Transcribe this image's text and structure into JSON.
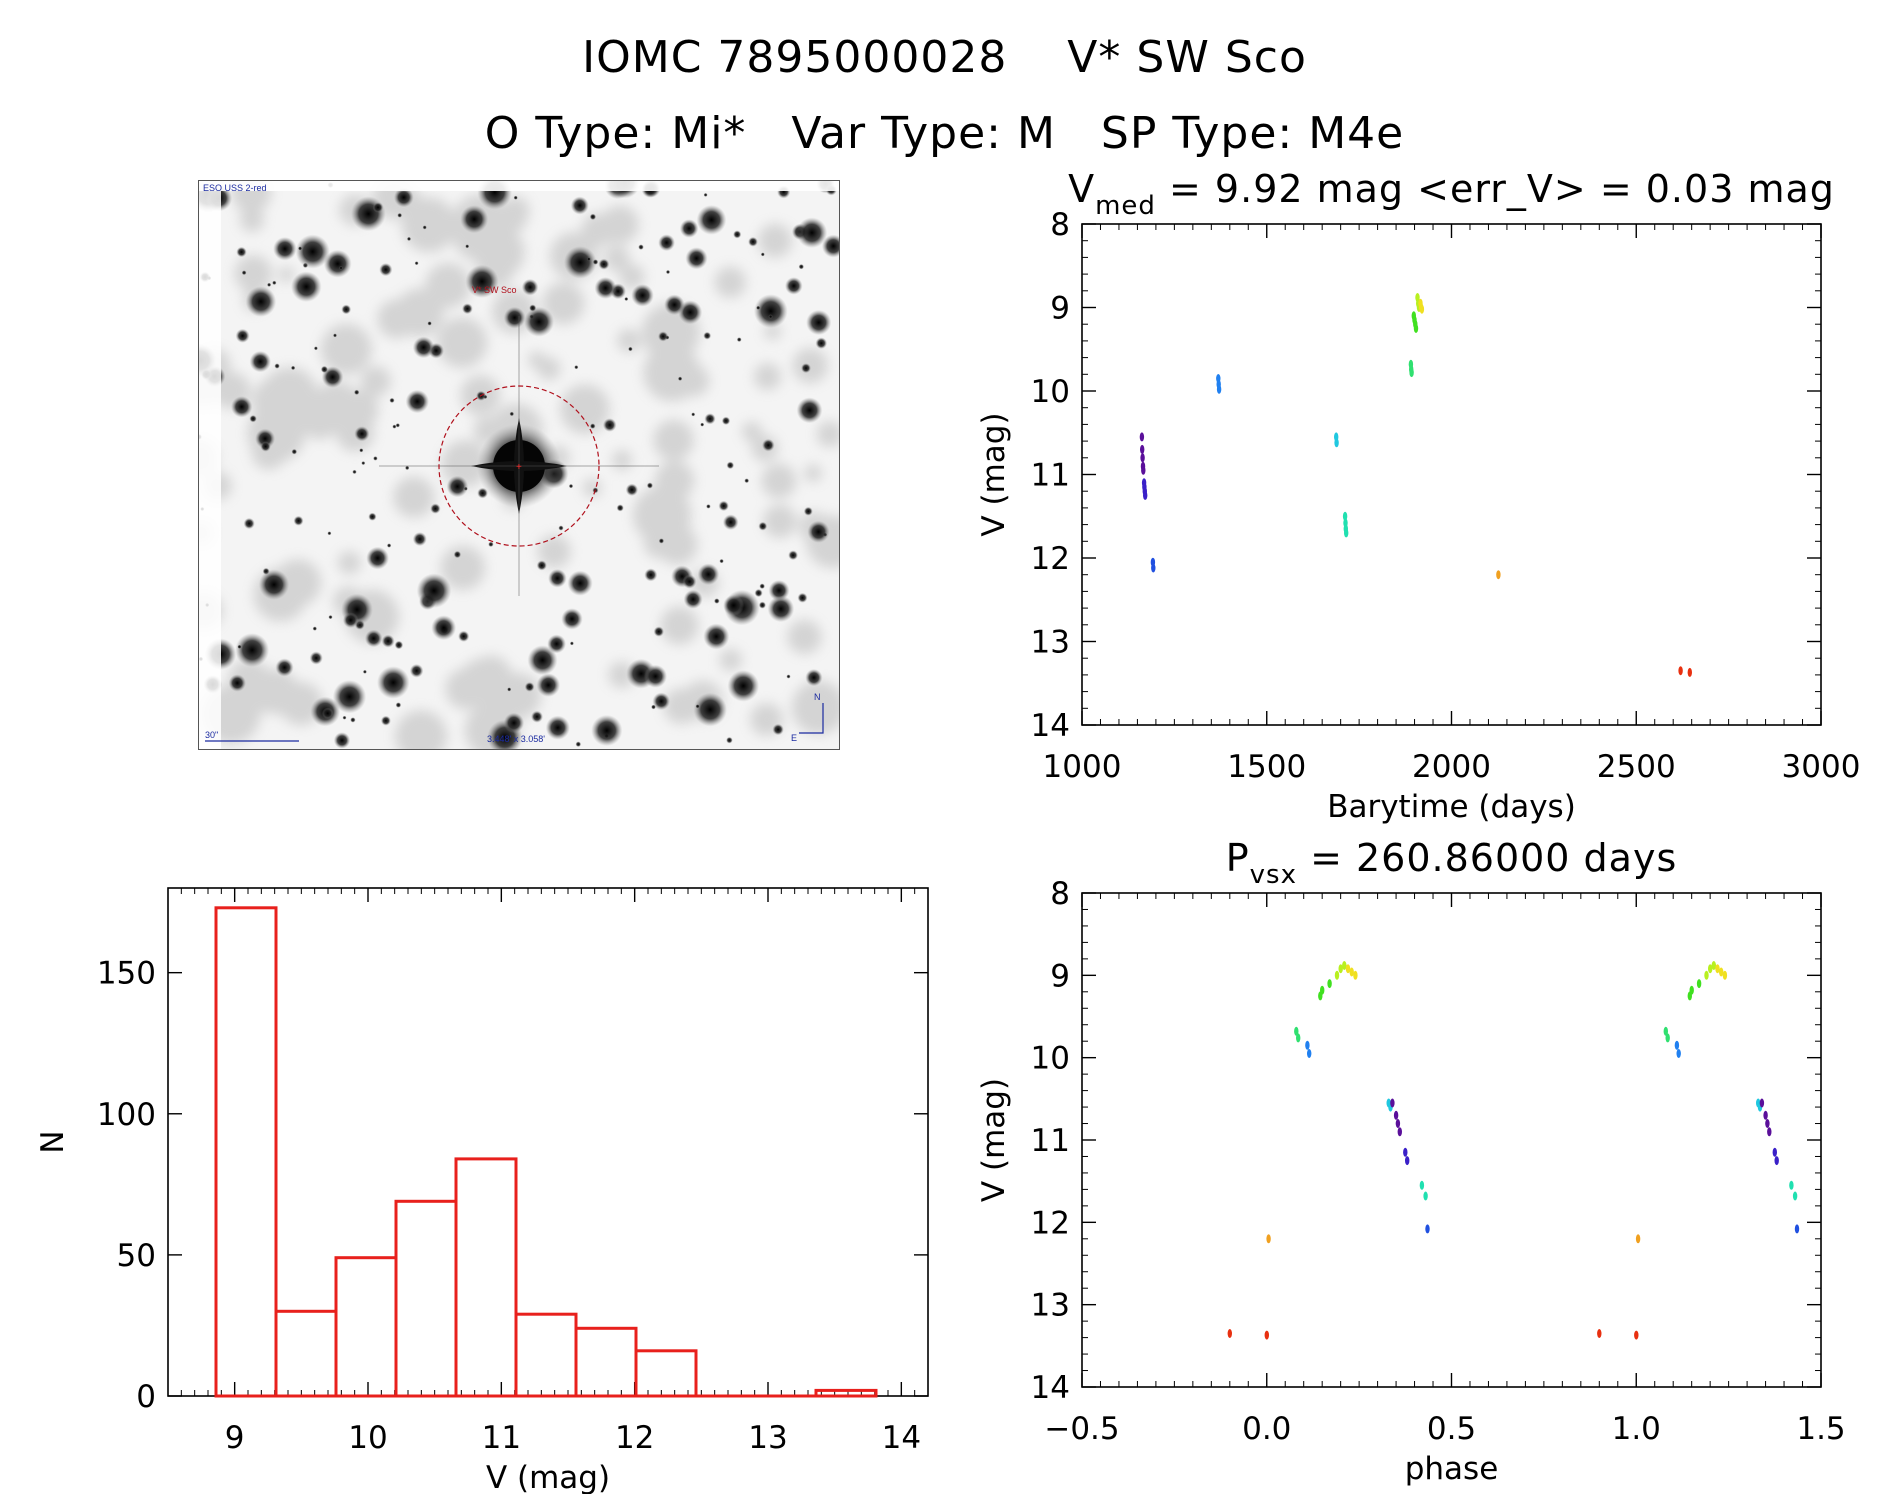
{
  "header": {
    "title_line1": "IOMC 7895000028    V* SW Sco",
    "title_line2": "O Type: Mi*   Var Type: M   SP Type: M4e"
  },
  "image_stamp": {
    "survey_label": "ESO USS 2-red",
    "target_label": "V* SW Sco",
    "scale_label": "30\"",
    "fov_label": "3.448' x 3.058'",
    "compass_north": "N",
    "compass_east": "E"
  },
  "colors": {
    "hist": "#e8201c",
    "axis": "#000000",
    "marker_circle": "#b0101c"
  },
  "chart_data": [
    {
      "type": "scatter",
      "id": "lightcurve",
      "title": "V_med = 9.92 mag <err_V> = 0.03 mag",
      "title_main": "V",
      "title_sub": "med",
      "title_rest": " = 9.92 mag <err_V> = 0.03 mag",
      "xlabel": "Barytime (days)",
      "ylabel": "V (mag)",
      "xlim": [
        1000,
        3000
      ],
      "ylim": [
        14,
        8
      ],
      "xticks": [
        1000,
        1500,
        2000,
        2500,
        3000
      ],
      "yticks": [
        8,
        9,
        10,
        11,
        12,
        13,
        14
      ],
      "groups": [
        {
          "color": "#5a0f9a",
          "x": [
            1162,
            1163,
            1164,
            1165,
            1166
          ],
          "y": [
            10.55,
            10.7,
            10.8,
            10.9,
            10.95
          ]
        },
        {
          "color": "#3a20c8",
          "x": [
            1168,
            1169,
            1170,
            1171
          ],
          "y": [
            11.1,
            11.15,
            11.2,
            11.25
          ]
        },
        {
          "color": "#2050e0",
          "x": [
            1192,
            1193
          ],
          "y": [
            12.05,
            12.12
          ]
        },
        {
          "color": "#2080f0",
          "x": [
            1369,
            1370,
            1371
          ],
          "y": [
            9.85,
            9.92,
            9.98
          ]
        },
        {
          "color": "#20c8e0",
          "x": [
            1688,
            1689
          ],
          "y": [
            10.55,
            10.62
          ]
        },
        {
          "color": "#20e0b0",
          "x": [
            1712,
            1713,
            1714,
            1715
          ],
          "y": [
            11.5,
            11.58,
            11.65,
            11.7
          ]
        },
        {
          "color": "#30e070",
          "x": [
            1890,
            1891,
            1892
          ],
          "y": [
            9.68,
            9.74,
            9.78
          ]
        },
        {
          "color": "#40e020",
          "x": [
            1898,
            1900,
            1902,
            1904
          ],
          "y": [
            9.1,
            9.15,
            9.2,
            9.25
          ]
        },
        {
          "color": "#b8f020",
          "x": [
            1908,
            1910,
            1912
          ],
          "y": [
            8.88,
            8.95,
            9.0
          ]
        },
        {
          "color": "#f0e020",
          "x": [
            1916,
            1918,
            1920
          ],
          "y": [
            8.95,
            9.0,
            9.02
          ]
        },
        {
          "color": "#f0a020",
          "x": [
            2127
          ],
          "y": [
            12.2
          ]
        },
        {
          "color": "#e83010",
          "x": [
            2620,
            2645
          ],
          "y": [
            13.35,
            13.37
          ]
        }
      ]
    },
    {
      "type": "scatter",
      "id": "phased",
      "title": "P_vsx = 260.86000 days",
      "title_main": "P",
      "title_sub": "vsx",
      "title_rest": " = 260.86000 days",
      "xlabel": "phase",
      "ylabel": "V (mag)",
      "xlim": [
        -0.5,
        1.5
      ],
      "ylim": [
        14,
        8
      ],
      "xticks": [
        -0.5,
        0.0,
        0.5,
        1.0,
        1.5
      ],
      "xtick_labels": [
        "−0.5",
        "0.0",
        "0.5",
        "1.0",
        "1.5"
      ],
      "yticks": [
        8,
        9,
        10,
        11,
        12,
        13,
        14
      ],
      "groups": [
        {
          "color": "#e83010",
          "x": [
            -0.1,
            0.0,
            0.9,
            1.0
          ],
          "y": [
            13.35,
            13.37,
            13.35,
            13.37
          ]
        },
        {
          "color": "#f0a020",
          "x": [
            0.005,
            1.005
          ],
          "y": [
            12.2,
            12.2
          ]
        },
        {
          "color": "#30e070",
          "x": [
            0.08,
            0.085,
            1.08,
            1.085
          ],
          "y": [
            9.68,
            9.76,
            9.68,
            9.76
          ]
        },
        {
          "color": "#2080f0",
          "x": [
            0.11,
            0.115,
            1.11,
            1.115
          ],
          "y": [
            9.85,
            9.95,
            9.85,
            9.95
          ]
        },
        {
          "color": "#40e020",
          "x": [
            0.145,
            0.15,
            0.17,
            1.145,
            1.15,
            1.17
          ],
          "y": [
            9.25,
            9.18,
            9.1,
            9.25,
            9.18,
            9.1
          ]
        },
        {
          "color": "#b8f020",
          "x": [
            0.19,
            0.2,
            0.21,
            1.19,
            1.2,
            1.21
          ],
          "y": [
            9.0,
            8.92,
            8.88,
            9.0,
            8.92,
            8.88
          ]
        },
        {
          "color": "#f0e020",
          "x": [
            0.22,
            0.23,
            0.24,
            1.22,
            1.23,
            1.24
          ],
          "y": [
            8.92,
            8.96,
            9.0,
            8.92,
            8.96,
            9.0
          ]
        },
        {
          "color": "#20c8e0",
          "x": [
            0.33,
            0.335,
            1.33,
            1.335
          ],
          "y": [
            10.55,
            10.6,
            10.55,
            10.6
          ]
        },
        {
          "color": "#5a0f9a",
          "x": [
            0.34,
            0.35,
            0.355,
            0.36,
            1.34,
            1.35,
            1.355,
            1.36
          ],
          "y": [
            10.55,
            10.7,
            10.8,
            10.9,
            10.55,
            10.7,
            10.8,
            10.9
          ]
        },
        {
          "color": "#3a20c8",
          "x": [
            0.375,
            0.38,
            1.375,
            1.38
          ],
          "y": [
            11.15,
            11.25,
            11.15,
            11.25
          ]
        },
        {
          "color": "#20e0b0",
          "x": [
            0.42,
            0.43,
            1.42,
            1.43
          ],
          "y": [
            11.55,
            11.68,
            11.55,
            11.68
          ]
        },
        {
          "color": "#2050e0",
          "x": [
            0.435,
            1.435
          ],
          "y": [
            12.08,
            12.08
          ]
        }
      ]
    },
    {
      "type": "bar",
      "id": "histogram",
      "xlabel": "V (mag)",
      "ylabel": "N",
      "xlim": [
        8.5,
        14.2
      ],
      "ylim": [
        0,
        180
      ],
      "xticks": [
        9,
        10,
        11,
        12,
        13,
        14
      ],
      "yticks": [
        0,
        50,
        100,
        150
      ],
      "bin_edges": [
        8.86,
        9.31,
        9.76,
        10.21,
        10.66,
        11.11,
        11.56,
        12.01,
        12.46,
        12.91,
        13.36,
        13.81
      ],
      "values": [
        173,
        30,
        49,
        69,
        84,
        29,
        24,
        16,
        0,
        0,
        2
      ]
    }
  ]
}
